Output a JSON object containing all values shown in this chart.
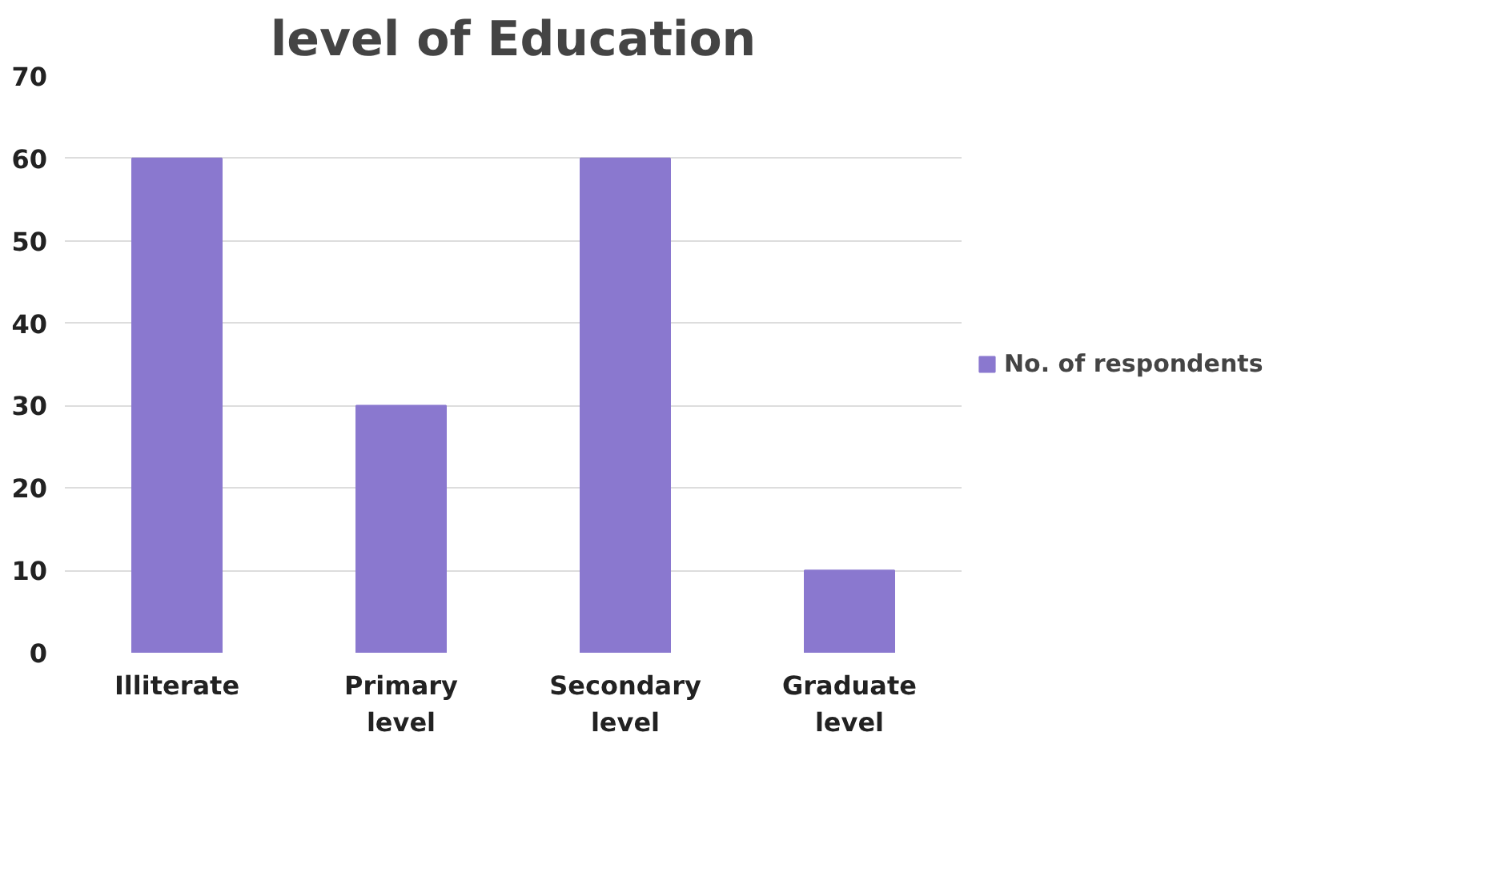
{
  "chart_data": {
    "type": "bar",
    "title": "level of Education",
    "categories": [
      "Illiterate",
      "Primary level",
      "Secondary level",
      "Graduate level"
    ],
    "series": [
      {
        "name": "No. of respondents",
        "color": "#8a78cf",
        "values": [
          60,
          30,
          60,
          10
        ]
      }
    ],
    "ylim": [
      0,
      70
    ],
    "yticks": [
      0,
      10,
      20,
      30,
      40,
      50,
      60,
      70
    ],
    "grid": "y",
    "legend": "right"
  }
}
